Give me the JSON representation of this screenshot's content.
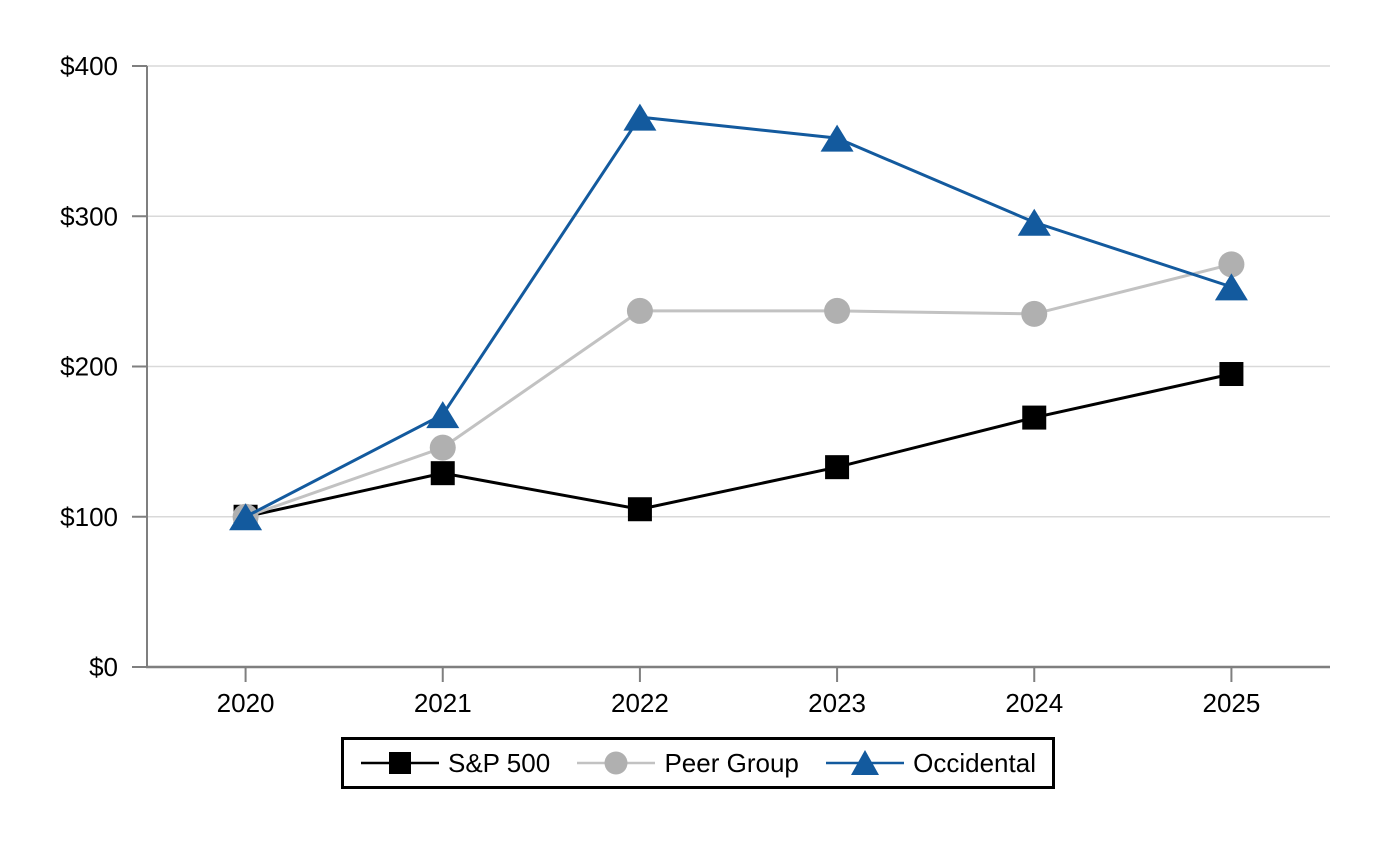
{
  "chart_data": {
    "type": "line",
    "title": "",
    "xlabel": "",
    "ylabel": "",
    "categories": [
      "2020",
      "2021",
      "2022",
      "2023",
      "2024",
      "2025"
    ],
    "series": [
      {
        "name": "S&P 500",
        "marker": "square",
        "color": "#000000",
        "line_color": "#000000",
        "values": [
          100,
          129,
          105,
          133,
          166,
          195
        ]
      },
      {
        "name": "Peer Group",
        "marker": "circle",
        "color": "#b0b0b0",
        "line_color": "#c2c2c2",
        "values": [
          100,
          146,
          237,
          237,
          235,
          268
        ]
      },
      {
        "name": "Occidental",
        "marker": "triangle",
        "color": "#135a9e",
        "line_color": "#135a9e",
        "values": [
          100,
          168,
          366,
          352,
          296,
          253
        ]
      }
    ],
    "ylim": [
      0,
      400
    ],
    "ytick_labels": [
      "$0",
      "$100",
      "$200",
      "$300",
      "$400"
    ],
    "grid": true,
    "legend_position": "bottom",
    "axis_color": "#7f7f7f",
    "grid_color": "#d9d9d9",
    "text_color": "#000000"
  }
}
